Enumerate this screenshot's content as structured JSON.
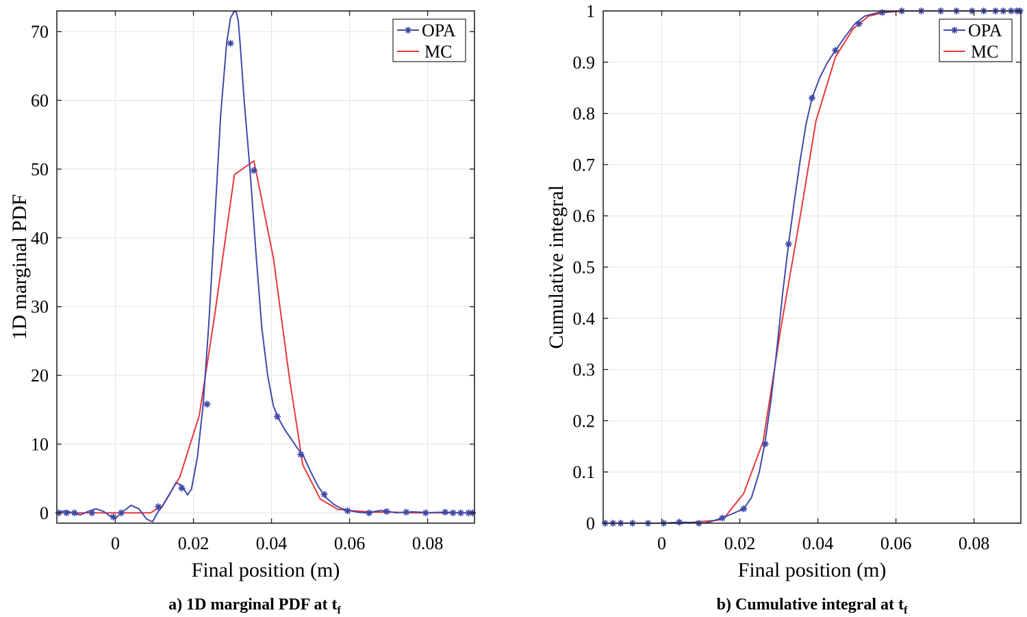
{
  "chart_data": [
    {
      "type": "line",
      "panel": "a",
      "caption": "a) 1D marginal PDF at t",
      "caption_sub": "f",
      "xlabel": "Final position (m)",
      "ylabel": "1D marginal PDF",
      "xlim": [
        -0.015,
        0.092
      ],
      "ylim": [
        -1.5,
        73
      ],
      "xticks": [
        0,
        0.02,
        0.04,
        0.06,
        0.08
      ],
      "xtick_labels": [
        "0",
        "0.02",
        "0.04",
        "0.06",
        "0.08"
      ],
      "yticks": [
        0,
        10,
        20,
        30,
        40,
        50,
        60,
        70
      ],
      "ytick_labels": [
        "0",
        "10",
        "20",
        "30",
        "40",
        "50",
        "60",
        "70"
      ],
      "grid": true,
      "legend": {
        "position": "top-right",
        "entries": [
          "OPA",
          "MC"
        ]
      },
      "series": [
        {
          "name": "OPA",
          "color": "#3f48a8",
          "marker": "star",
          "x": [
            -0.015,
            -0.013,
            -0.011,
            -0.009,
            -0.007,
            -0.005,
            -0.003,
            -0.001,
            0.0,
            0.002,
            0.004,
            0.006,
            0.008,
            0.0095,
            0.011,
            0.012,
            0.014,
            0.0155,
            0.017,
            0.0185,
            0.0195,
            0.021,
            0.0225,
            0.024,
            0.0255,
            0.027,
            0.0285,
            0.0295,
            0.0305,
            0.031,
            0.0315,
            0.032,
            0.033,
            0.0345,
            0.036,
            0.0375,
            0.039,
            0.0405,
            0.042,
            0.0435,
            0.045,
            0.0465,
            0.048,
            0.05,
            0.052,
            0.054,
            0.056,
            0.058,
            0.06,
            0.062,
            0.064,
            0.066,
            0.068,
            0.07,
            0.072,
            0.074,
            0.076,
            0.078,
            0.08,
            0.082,
            0.084,
            0.086,
            0.088,
            0.09,
            0.092
          ],
          "y": [
            0.0,
            0.3,
            0.0,
            -0.3,
            0.2,
            0.6,
            0.2,
            -0.6,
            -0.8,
            0.2,
            1.1,
            0.6,
            -0.9,
            -1.3,
            0.2,
            0.9,
            2.8,
            4.4,
            4.0,
            2.6,
            3.5,
            8.0,
            15.8,
            28.0,
            43.0,
            58.0,
            68.3,
            72.0,
            73.0,
            72.8,
            71.5,
            68.0,
            60.0,
            49.8,
            38.0,
            27.0,
            20.0,
            15.5,
            13.5,
            12.0,
            10.8,
            9.5,
            8.5,
            6.0,
            3.8,
            2.2,
            1.2,
            0.6,
            0.3,
            0.1,
            0.0,
            0.15,
            0.35,
            0.2,
            0.0,
            0.1,
            0.15,
            0.1,
            0.0,
            0.05,
            0.1,
            0.05,
            0.0,
            0.0,
            0.0
          ],
          "marker_x": [
            -0.0145,
            -0.0125,
            -0.0105,
            -0.006,
            -0.0005,
            0.0015,
            0.011,
            0.017,
            0.0235,
            0.0295,
            0.0355,
            0.0415,
            0.0475,
            0.0535,
            0.0595,
            0.065,
            0.0695,
            0.0745,
            0.0795,
            0.0845,
            0.0865,
            0.0885,
            0.0905,
            0.0915
          ],
          "marker_y": [
            0.0,
            0.0,
            0.0,
            0.0,
            -0.6,
            0.0,
            0.9,
            3.6,
            15.8,
            68.3,
            49.8,
            14.0,
            8.5,
            2.7,
            0.3,
            0.0,
            0.2,
            0.1,
            0.0,
            0.1,
            0.0,
            0.0,
            0.0,
            0.0
          ]
        },
        {
          "name": "MC",
          "color": "#e8363b",
          "marker": "none",
          "x": [
            -0.015,
            -0.01,
            -0.005,
            0.0,
            0.005,
            0.009,
            0.012,
            0.0165,
            0.0215,
            0.0255,
            0.0305,
            0.0355,
            0.0405,
            0.0445,
            0.048,
            0.0525,
            0.057,
            0.061,
            0.066,
            0.071,
            0.076,
            0.081,
            0.086,
            0.092
          ],
          "y": [
            0.0,
            0.0,
            0.0,
            0.0,
            0.0,
            0.0,
            1.0,
            5.2,
            14.2,
            29.0,
            49.2,
            51.2,
            37.0,
            20.0,
            7.0,
            2.0,
            0.5,
            0.3,
            0.1,
            0.1,
            0.0,
            0.0,
            0.0,
            0.0
          ]
        }
      ]
    },
    {
      "type": "line",
      "panel": "b",
      "caption": "b) Cumulative integral at t",
      "caption_sub": "f",
      "xlabel": "Final position (m)",
      "ylabel": "Cumulative integral",
      "xlim": [
        -0.015,
        0.092
      ],
      "ylim": [
        0,
        1
      ],
      "xticks": [
        0,
        0.02,
        0.04,
        0.06,
        0.08
      ],
      "xtick_labels": [
        "0",
        "0.02",
        "0.04",
        "0.06",
        "0.08"
      ],
      "yticks": [
        0,
        0.1,
        0.2,
        0.3,
        0.4,
        0.5,
        0.6,
        0.7,
        0.8,
        0.9,
        1
      ],
      "ytick_labels": [
        "0",
        "0.1",
        "0.2",
        "0.3",
        "0.4",
        "0.5",
        "0.6",
        "0.7",
        "0.8",
        "0.9",
        "1"
      ],
      "grid": true,
      "legend": {
        "position": "top-right",
        "entries": [
          "OPA",
          "MC"
        ]
      },
      "series": [
        {
          "name": "OPA",
          "color": "#3f48a8",
          "marker": "star",
          "x": [
            -0.015,
            -0.01,
            -0.005,
            0.0,
            0.005,
            0.009,
            0.011,
            0.013,
            0.0155,
            0.018,
            0.021,
            0.023,
            0.025,
            0.0265,
            0.028,
            0.0295,
            0.031,
            0.0325,
            0.034,
            0.0355,
            0.037,
            0.0385,
            0.0405,
            0.0425,
            0.0445,
            0.047,
            0.0495,
            0.052,
            0.0555,
            0.06,
            0.065,
            0.07,
            0.075,
            0.08,
            0.085,
            0.092
          ],
          "y": [
            0.0,
            0.0,
            0.0,
            0.0,
            0.002,
            0.001,
            0.0,
            0.004,
            0.01,
            0.018,
            0.028,
            0.05,
            0.1,
            0.16,
            0.24,
            0.34,
            0.45,
            0.545,
            0.63,
            0.71,
            0.78,
            0.83,
            0.87,
            0.9,
            0.923,
            0.95,
            0.975,
            0.99,
            0.997,
            1.0,
            1.0,
            1.0,
            1.0,
            1.0,
            1.0,
            1.0
          ],
          "marker_x": [
            -0.0145,
            -0.0125,
            -0.0105,
            -0.0075,
            -0.0035,
            0.0005,
            0.0045,
            0.0095,
            0.0155,
            0.021,
            0.0265,
            0.0325,
            0.0385,
            0.0445,
            0.0505,
            0.0565,
            0.0615,
            0.0665,
            0.0715,
            0.0755,
            0.0795,
            0.0825,
            0.0855,
            0.0875,
            0.0895,
            0.091,
            0.0918
          ],
          "marker_y": [
            0.0,
            0.0,
            0.0,
            0.0,
            0.0,
            0.0,
            0.002,
            0.0,
            0.01,
            0.028,
            0.155,
            0.545,
            0.83,
            0.923,
            0.975,
            0.997,
            1.0,
            1.0,
            1.0,
            1.0,
            1.0,
            1.0,
            1.0,
            1.0,
            1.0,
            1.0,
            1.0
          ]
        },
        {
          "name": "MC",
          "color": "#e8363b",
          "marker": "none",
          "x": [
            -0.015,
            -0.01,
            -0.005,
            0.0,
            0.005,
            0.01,
            0.0145,
            0.0165,
            0.021,
            0.026,
            0.0305,
            0.0355,
            0.0395,
            0.0445,
            0.049,
            0.053,
            0.057,
            0.062,
            0.067,
            0.072,
            0.08,
            0.092
          ],
          "y": [
            0.0,
            0.0,
            0.0,
            0.0,
            0.0,
            0.003,
            0.006,
            0.015,
            0.058,
            0.16,
            0.38,
            0.6,
            0.785,
            0.91,
            0.965,
            0.99,
            0.997,
            1.0,
            1.0,
            1.0,
            1.0,
            1.0
          ]
        }
      ]
    }
  ]
}
